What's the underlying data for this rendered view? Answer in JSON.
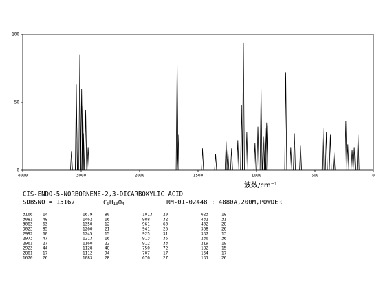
{
  "chart_data": {
    "type": "stick",
    "compound": "CIS-ENDO-5-NORBORNENE-2,3-DICARBOXYLIC ACID",
    "sdbs_no": "SDBSNO = 15167",
    "formula": [
      "C",
      "9",
      "H",
      "10",
      "O",
      "4"
    ],
    "measurement": "RM-01-02448 : 4880A,200M,POWDER",
    "x_label": "波数/cm⁻¹",
    "x": [
      3166,
      3081,
      3083,
      3023,
      2992,
      2973,
      2961,
      2923,
      2881,
      1670,
      1679,
      1462,
      1350,
      1260,
      1245,
      1213,
      1160,
      1128,
      1112,
      1083,
      1013,
      988,
      961,
      941,
      925,
      913,
      912,
      750,
      707,
      676,
      623,
      431,
      402,
      368,
      337,
      236,
      219,
      182,
      164,
      131
    ],
    "values": [
      14,
      48,
      63,
      85,
      60,
      47,
      27,
      44,
      17,
      26,
      80,
      16,
      12,
      21,
      15,
      16,
      22,
      48,
      94,
      28,
      20,
      32,
      60,
      25,
      31,
      35,
      33,
      72,
      17,
      27,
      18,
      31,
      28,
      26,
      13,
      36,
      19,
      15,
      17,
      26
    ],
    "color": "#000000",
    "xlim": [
      4000,
      0
    ],
    "xticks": [
      4000,
      3000,
      2000,
      1500,
      1000,
      500,
      0
    ],
    "ylim": [
      0,
      100
    ],
    "yticks": [
      0,
      50,
      100
    ]
  }
}
